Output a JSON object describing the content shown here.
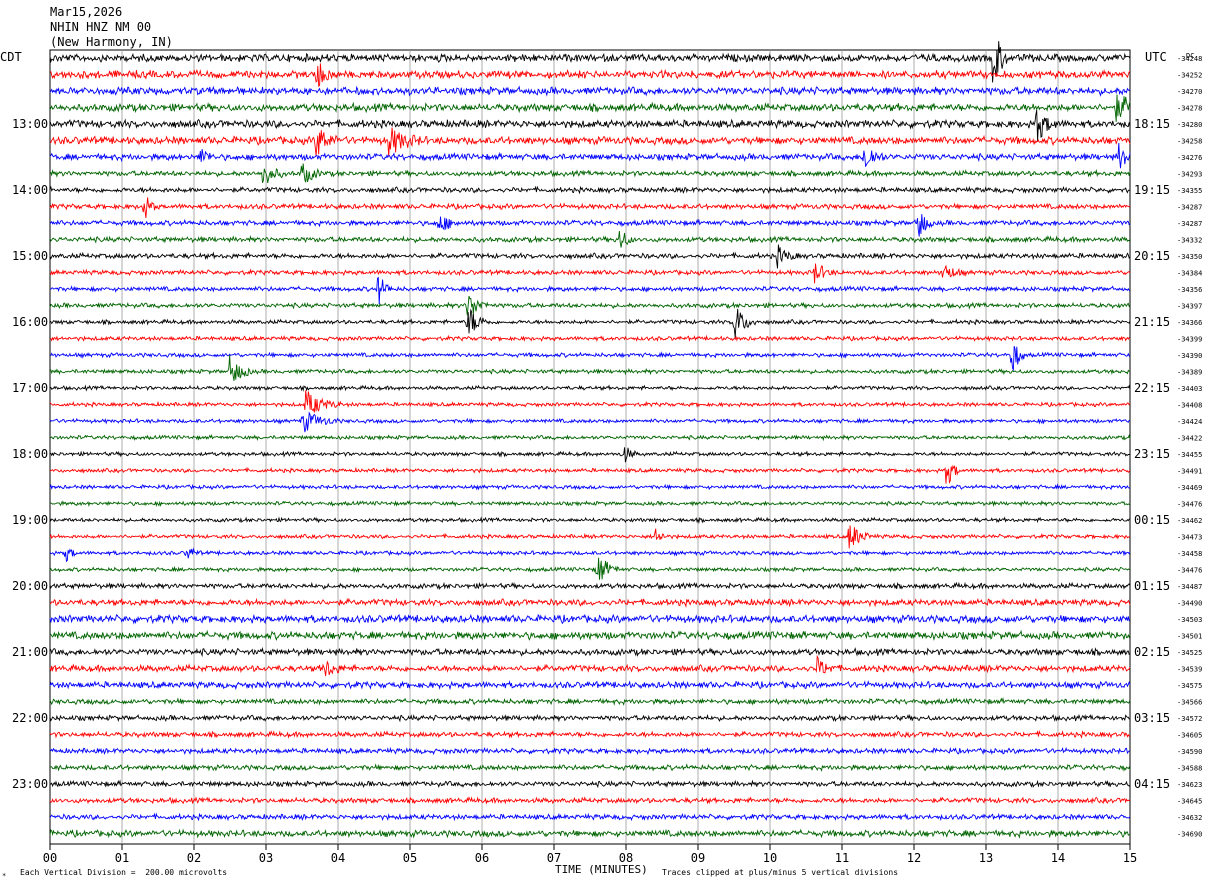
{
  "header": {
    "date": "Mar15,2026",
    "channel": "NHIN HNZ NM 00",
    "location": "(New Harmony, IN)"
  },
  "left_timezone": "CDT",
  "right_timezone": "UTC",
  "dc_label": "DC",
  "footer": {
    "scale_note": "Each Vertical Division =  200.00 microvolts",
    "axis_title": "TIME (MINUTES)",
    "clip_note": "Traces clipped at plus/minus 5 vertical divisions"
  },
  "chart_data": {
    "type": "line",
    "title": "NHIN HNZ NM 00",
    "xlabel": "TIME (MINUTES)",
    "xlim": [
      0,
      15
    ],
    "x_ticks": [
      "00",
      "01",
      "02",
      "03",
      "04",
      "05",
      "06",
      "07",
      "08",
      "09",
      "10",
      "11",
      "12",
      "13",
      "14",
      "15"
    ],
    "trace_colors": [
      "#000000",
      "#ff0000",
      "#0000ff",
      "#006400"
    ],
    "left_hour_labels": [
      "13:00",
      "14:00",
      "15:00",
      "16:00",
      "17:00",
      "18:00",
      "19:00",
      "20:00",
      "21:00",
      "22:00",
      "23:00"
    ],
    "right_hour_labels": [
      "18:15",
      "19:15",
      "20:15",
      "21:15",
      "22:15",
      "23:15",
      "00:15",
      "01:15",
      "02:15",
      "03:15",
      "04:15"
    ],
    "first_labeled_row": 4,
    "rows_per_hour": 4,
    "dc_offsets": [
      "-34248",
      "-34252",
      "-34270",
      "-34278",
      "-34280",
      "-34258",
      "-34276",
      "-34293",
      "-34355",
      "-34287",
      "-34287",
      "-34332",
      "-34350",
      "-34384",
      "-34356",
      "-34397",
      "-34366",
      "-34399",
      "-34390",
      "-34389",
      "-34403",
      "-34408",
      "-34424",
      "-34422",
      "-34455",
      "-34491",
      "-34469",
      "-34476",
      "-34462",
      "-34473",
      "-34458",
      "-34476",
      "-34487",
      "-34490",
      "-34503",
      "-34501",
      "-34525",
      "-34539",
      "-34575",
      "-34566",
      "-34572",
      "-34605",
      "-34590",
      "-34588",
      "-34623",
      "-34645",
      "-34632",
      "-34690"
    ],
    "noise_levels": [
      3,
      3,
      3,
      3,
      3,
      3,
      2.5,
      2,
      2,
      2,
      2,
      2,
      2,
      1.8,
      1.8,
      1.8,
      1.6,
      1.6,
      1.6,
      1.6,
      1.5,
      1.5,
      1.5,
      1.5,
      1.5,
      1.5,
      1.5,
      1.5,
      1.5,
      1.5,
      1.5,
      1.5,
      2,
      2.5,
      3,
      3,
      2.5,
      2.5,
      2.5,
      2,
      2,
      2,
      2,
      2,
      2,
      2,
      2,
      2.5
    ],
    "events": [
      {
        "row": 0,
        "minute": 13.1,
        "amp": 40,
        "dur": 0.2
      },
      {
        "row": 1,
        "minute": 3.7,
        "amp": 14,
        "dur": 0.3
      },
      {
        "row": 3,
        "minute": 14.8,
        "amp": 12,
        "dur": 0.6
      },
      {
        "row": 4,
        "minute": 13.7,
        "amp": 18,
        "dur": 0.3
      },
      {
        "row": 5,
        "minute": 3.7,
        "amp": 18,
        "dur": 0.3
      },
      {
        "row": 5,
        "minute": 4.7,
        "amp": 14,
        "dur": 0.5
      },
      {
        "row": 6,
        "minute": 2.1,
        "amp": 10,
        "dur": 0.2
      },
      {
        "row": 6,
        "minute": 11.3,
        "amp": 16,
        "dur": 0.3
      },
      {
        "row": 6,
        "minute": 14.85,
        "amp": 18,
        "dur": 0.2
      },
      {
        "row": 7,
        "minute": 2.95,
        "amp": 14,
        "dur": 0.3
      },
      {
        "row": 7,
        "minute": 3.5,
        "amp": 12,
        "dur": 0.3
      },
      {
        "row": 9,
        "minute": 1.3,
        "amp": 14,
        "dur": 0.2
      },
      {
        "row": 10,
        "minute": 5.4,
        "amp": 10,
        "dur": 0.3
      },
      {
        "row": 10,
        "minute": 12.05,
        "amp": 22,
        "dur": 0.2
      },
      {
        "row": 11,
        "minute": 7.9,
        "amp": 14,
        "dur": 0.2
      },
      {
        "row": 12,
        "minute": 10.1,
        "amp": 10,
        "dur": 0.3
      },
      {
        "row": 13,
        "minute": 10.6,
        "amp": 12,
        "dur": 0.3
      },
      {
        "row": 13,
        "minute": 12.4,
        "amp": 10,
        "dur": 0.3
      },
      {
        "row": 14,
        "minute": 4.55,
        "amp": 18,
        "dur": 0.2
      },
      {
        "row": 15,
        "minute": 5.8,
        "amp": 16,
        "dur": 0.3
      },
      {
        "row": 16,
        "minute": 5.8,
        "amp": 18,
        "dur": 0.3
      },
      {
        "row": 16,
        "minute": 9.5,
        "amp": 20,
        "dur": 0.3
      },
      {
        "row": 18,
        "minute": 13.35,
        "amp": 24,
        "dur": 0.2
      },
      {
        "row": 19,
        "minute": 2.5,
        "amp": 18,
        "dur": 0.3
      },
      {
        "row": 21,
        "minute": 3.55,
        "amp": 14,
        "dur": 0.5
      },
      {
        "row": 22,
        "minute": 3.5,
        "amp": 12,
        "dur": 0.5
      },
      {
        "row": 24,
        "minute": 7.95,
        "amp": 12,
        "dur": 0.2
      },
      {
        "row": 25,
        "minute": 12.45,
        "amp": 18,
        "dur": 0.2
      },
      {
        "row": 29,
        "minute": 8.4,
        "amp": 10,
        "dur": 0.2
      },
      {
        "row": 29,
        "minute": 11.1,
        "amp": 16,
        "dur": 0.3
      },
      {
        "row": 30,
        "minute": 0.2,
        "amp": 10,
        "dur": 0.2
      },
      {
        "row": 30,
        "minute": 1.9,
        "amp": 8,
        "dur": 0.2
      },
      {
        "row": 31,
        "minute": 7.6,
        "amp": 18,
        "dur": 0.3
      },
      {
        "row": 37,
        "minute": 3.8,
        "amp": 10,
        "dur": 0.3
      },
      {
        "row": 37,
        "minute": 10.65,
        "amp": 10,
        "dur": 0.3
      }
    ]
  }
}
